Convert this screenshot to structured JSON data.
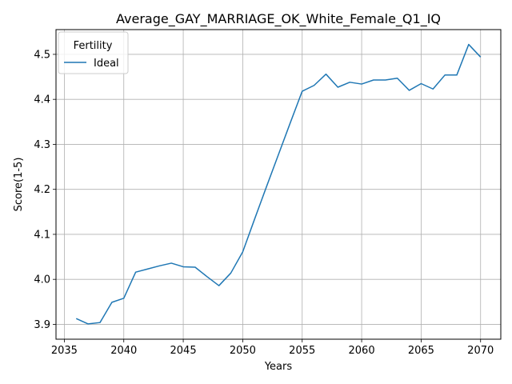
{
  "chart_data": {
    "type": "line",
    "title": "Average_GAY_MARRIAGE_OK_White_Female_Q1_IQ",
    "xlabel": "Years",
    "ylabel": "Score(1-5)",
    "xlim": [
      2034.3,
      2071.7
    ],
    "ylim": [
      3.867,
      4.555
    ],
    "x_ticks": [
      2035,
      2040,
      2045,
      2050,
      2055,
      2060,
      2065,
      2070
    ],
    "y_ticks": [
      3.9,
      4.0,
      4.1,
      4.2,
      4.3,
      4.4,
      4.5
    ],
    "grid": true,
    "legend": {
      "title": "Fertility",
      "placement": "top-left"
    },
    "series": [
      {
        "name": "Ideal",
        "color": "#1f77b4",
        "x": [
          2036,
          2037,
          2038,
          2039,
          2040,
          2041,
          2042,
          2043,
          2044,
          2045,
          2046,
          2047,
          2048,
          2049,
          2050,
          2051,
          2052,
          2053,
          2054,
          2055,
          2056,
          2057,
          2058,
          2059,
          2060,
          2061,
          2062,
          2063,
          2064,
          2065,
          2066,
          2067,
          2068,
          2069,
          2070
        ],
        "y": [
          3.913,
          3.901,
          3.904,
          3.949,
          3.958,
          4.016,
          4.023,
          4.03,
          4.036,
          4.028,
          4.027,
          4.006,
          3.986,
          4.014,
          4.061,
          4.134,
          4.206,
          4.277,
          4.348,
          4.418,
          4.431,
          4.456,
          4.427,
          4.438,
          4.434,
          4.443,
          4.443,
          4.447,
          4.42,
          4.435,
          4.423,
          4.454,
          4.454,
          4.522,
          4.494
        ]
      }
    ]
  }
}
